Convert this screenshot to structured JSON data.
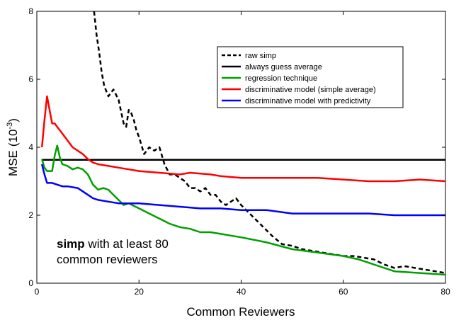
{
  "chart_data": {
    "type": "line",
    "xlabel": "Common Reviewers",
    "ylabel": "MSE",
    "ylabel_exponent": "-3",
    "ylabel_prefix": "(10",
    "ylabel_suffix": ")",
    "xlim": [
      0,
      80
    ],
    "ylim": [
      0,
      8
    ],
    "xticks": [
      0,
      20,
      40,
      60,
      80
    ],
    "yticks": [
      0,
      2,
      4,
      6,
      8
    ],
    "grid": false,
    "legend_position": "top-right",
    "annotation": {
      "bold": "simp",
      "rest": " with at least 80",
      "line2": "common reviewers"
    },
    "series": [
      {
        "name": "raw simp",
        "color": "#000000",
        "style": "dashed",
        "x": [
          11.2,
          11.7,
          12.2,
          12.7,
          13.2,
          14,
          15,
          16,
          17,
          17.5,
          18,
          18.5,
          19,
          19.5,
          20,
          21,
          22,
          23,
          24,
          25,
          26,
          27,
          28,
          29,
          30,
          31,
          32,
          33,
          34,
          35,
          36,
          37,
          38,
          39,
          40,
          42,
          44,
          46,
          48,
          50,
          52,
          54,
          56,
          58,
          60,
          62,
          64,
          66,
          68,
          70,
          72,
          74,
          76,
          78,
          80
        ],
        "y": [
          8.0,
          7.3,
          6.8,
          6.2,
          5.8,
          5.5,
          5.7,
          5.4,
          4.7,
          4.6,
          5.1,
          5.0,
          4.8,
          4.5,
          4.3,
          3.8,
          4.0,
          3.9,
          4.0,
          3.5,
          3.2,
          3.2,
          3.1,
          3.0,
          2.8,
          2.8,
          2.7,
          2.8,
          2.6,
          2.6,
          2.4,
          2.3,
          2.4,
          2.5,
          2.3,
          2.0,
          1.7,
          1.4,
          1.15,
          1.1,
          1.0,
          0.95,
          0.9,
          0.85,
          0.8,
          0.8,
          0.75,
          0.7,
          0.55,
          0.45,
          0.5,
          0.45,
          0.4,
          0.35,
          0.3
        ]
      },
      {
        "name": "always guess average",
        "color": "#000000",
        "style": "solid",
        "x": [
          1,
          80
        ],
        "y": [
          3.63,
          3.63
        ]
      },
      {
        "name": "regression technique",
        "color": "#00a000",
        "style": "solid",
        "x": [
          1,
          1.5,
          2,
          3,
          3.5,
          4,
          4.5,
          5,
          6,
          7,
          8,
          9,
          10,
          11,
          12,
          13,
          14,
          15,
          16,
          17,
          18,
          20,
          22,
          24,
          26,
          28,
          30,
          32,
          34,
          36,
          38,
          40,
          45,
          50,
          55,
          60,
          63,
          65,
          67,
          70,
          75,
          80
        ],
        "y": [
          3.65,
          3.4,
          3.3,
          3.3,
          3.75,
          4.05,
          3.7,
          3.5,
          3.45,
          3.35,
          3.4,
          3.35,
          3.2,
          2.9,
          2.75,
          2.8,
          2.75,
          2.6,
          2.45,
          2.3,
          2.35,
          2.2,
          2.05,
          1.9,
          1.75,
          1.65,
          1.6,
          1.5,
          1.5,
          1.45,
          1.4,
          1.35,
          1.2,
          1.0,
          0.9,
          0.8,
          0.7,
          0.6,
          0.5,
          0.35,
          0.3,
          0.25
        ]
      },
      {
        "name": "discriminative model (simple average)",
        "color": "#ff0000",
        "style": "solid",
        "x": [
          1,
          1.5,
          2,
          3,
          3.5,
          4,
          4.5,
          5,
          6,
          7,
          8,
          9,
          10,
          11,
          12,
          14,
          16,
          18,
          20,
          24,
          28,
          30,
          34,
          36,
          40,
          45,
          50,
          55,
          60,
          65,
          68,
          70,
          75,
          80
        ],
        "y": [
          4.0,
          4.8,
          5.5,
          4.7,
          4.7,
          4.6,
          4.5,
          4.4,
          4.2,
          4.0,
          3.9,
          3.8,
          3.65,
          3.55,
          3.5,
          3.45,
          3.4,
          3.35,
          3.3,
          3.25,
          3.2,
          3.25,
          3.2,
          3.15,
          3.1,
          3.1,
          3.1,
          3.1,
          3.05,
          3.0,
          3.0,
          3.0,
          3.05,
          3.0
        ]
      },
      {
        "name": "discriminative model with predictivity",
        "color": "#0000ff",
        "style": "solid",
        "x": [
          1,
          1.5,
          2,
          3,
          4,
          5,
          6,
          8,
          10,
          11,
          12,
          14,
          16,
          18,
          20,
          24,
          28,
          32,
          36,
          40,
          45,
          50,
          55,
          60,
          65,
          70,
          75,
          80
        ],
        "y": [
          3.5,
          3.2,
          2.95,
          2.95,
          2.9,
          2.85,
          2.85,
          2.8,
          2.6,
          2.5,
          2.45,
          2.4,
          2.35,
          2.35,
          2.35,
          2.3,
          2.25,
          2.2,
          2.2,
          2.15,
          2.15,
          2.05,
          2.05,
          2.05,
          2.05,
          2.0,
          2.0,
          2.0
        ]
      }
    ]
  }
}
